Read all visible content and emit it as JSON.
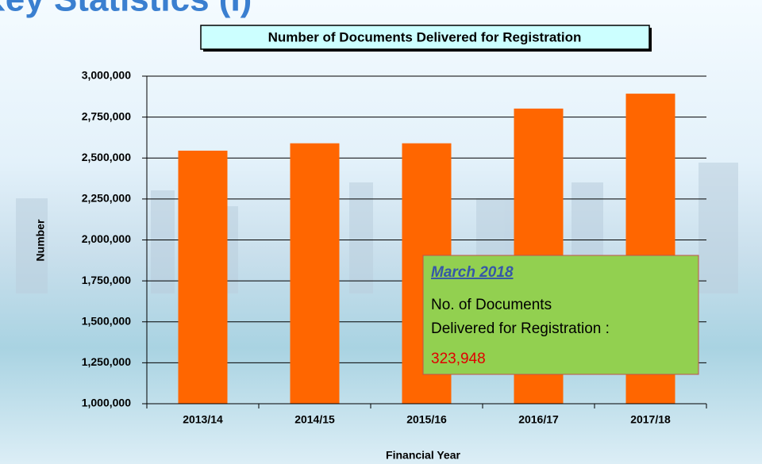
{
  "slide_title": "Key Statistics (I)",
  "chart_data": {
    "type": "bar",
    "title": "Number of Documents Delivered for Registration",
    "x_label": "Financial Year",
    "y_label": "Number",
    "categories": [
      "2013/14",
      "2014/15",
      "2015/16",
      "2016/17",
      "2017/18"
    ],
    "values": [
      2545000,
      2590000,
      2590000,
      2802000,
      2893000
    ],
    "color": "#ff6600",
    "ylim": [
      1000000,
      3000000
    ],
    "yticks": [
      {
        "value": 1000000,
        "label": "1,000,000"
      },
      {
        "value": 1250000,
        "label": "1,250,000"
      },
      {
        "value": 1500000,
        "label": "1,500,000"
      },
      {
        "value": 1750000,
        "label": "1,750,000"
      },
      {
        "value": 2000000,
        "label": "2,000,000"
      },
      {
        "value": 2250000,
        "label": "2,250,000"
      },
      {
        "value": 2500000,
        "label": "2,500,000"
      },
      {
        "value": 2750000,
        "label": "2,750,000"
      },
      {
        "value": 3000000,
        "label": "3,000,000"
      }
    ],
    "grid": true,
    "annotation": {
      "heading": "March 2018",
      "lines": [
        "No. of Documents",
        "Delivered for Registration :"
      ],
      "value": "323,948"
    }
  }
}
